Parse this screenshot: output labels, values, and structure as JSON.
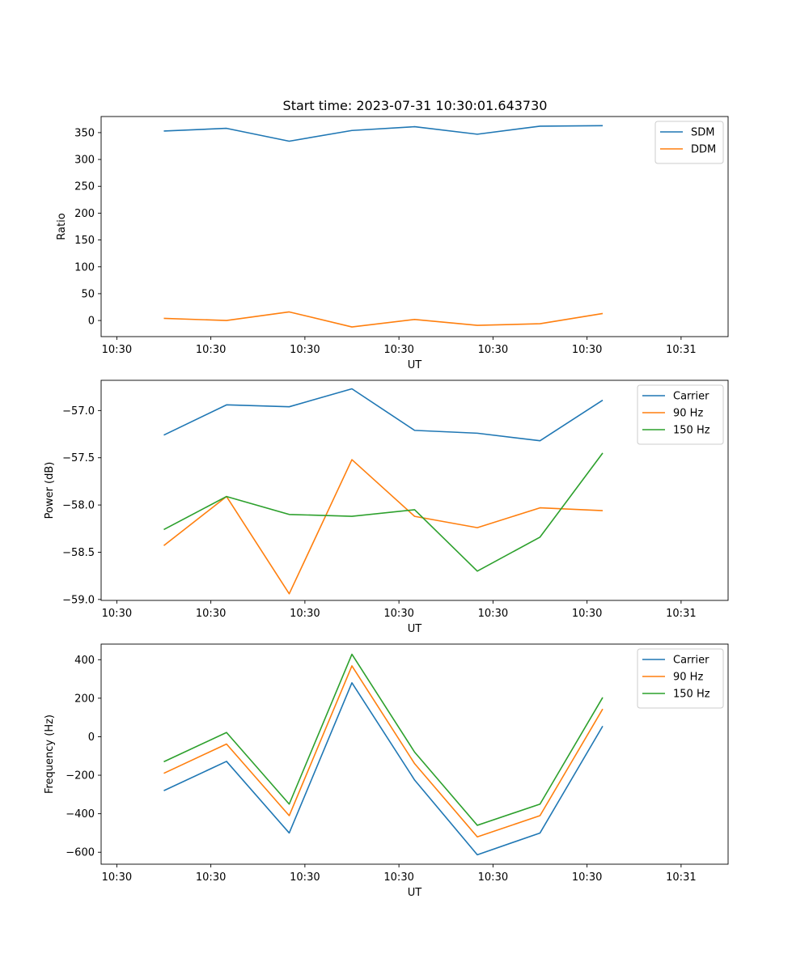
{
  "title": "Start time: 2023-07-31 10:30:01.643730",
  "x_tick_labels": [
    "10:30",
    "10:30",
    "10:30",
    "10:30",
    "10:30",
    "10:30",
    "10:31"
  ],
  "colors": {
    "blue": "#1f77b4",
    "orange": "#ff7f0e",
    "green": "#2ca02c"
  },
  "chart_data": [
    {
      "type": "line",
      "title": "Start time: 2023-07-31 10:30:01.643730",
      "xlabel": "UT",
      "ylabel": "Ratio",
      "x": [
        1,
        2,
        3,
        4,
        5,
        6,
        7,
        8
      ],
      "xlim": [
        0,
        10
      ],
      "ylim": [
        -30,
        380
      ],
      "yticks": [
        0,
        50,
        100,
        150,
        200,
        250,
        300,
        350
      ],
      "ytick_labels": [
        "0",
        "50",
        "100",
        "150",
        "200",
        "250",
        "300",
        "350"
      ],
      "legend_position": "top-right",
      "series": [
        {
          "name": "SDM",
          "color": "#1f77b4",
          "values": [
            353,
            358,
            334,
            354,
            361,
            347,
            362,
            363
          ]
        },
        {
          "name": "DDM",
          "color": "#ff7f0e",
          "values": [
            4,
            0,
            16,
            -12,
            2,
            -9,
            -6,
            13
          ]
        }
      ]
    },
    {
      "type": "line",
      "title": "",
      "xlabel": "UT",
      "ylabel": "Power (dB)",
      "x": [
        1,
        2,
        3,
        4,
        5,
        6,
        7,
        8
      ],
      "xlim": [
        0,
        10
      ],
      "ylim": [
        -59.01,
        -56.68
      ],
      "yticks": [
        -59.0,
        -58.5,
        -58.0,
        -57.5,
        -57.0
      ],
      "ytick_labels": [
        "−59.0",
        "−58.5",
        "−58.0",
        "−57.5",
        "−57.0"
      ],
      "legend_position": "top-right",
      "series": [
        {
          "name": "Carrier",
          "color": "#1f77b4",
          "values": [
            -57.26,
            -56.94,
            -56.96,
            -56.77,
            -57.21,
            -57.24,
            -57.32,
            -56.89
          ]
        },
        {
          "name": "90 Hz",
          "color": "#ff7f0e",
          "values": [
            -58.43,
            -57.91,
            -58.94,
            -57.52,
            -58.12,
            -58.24,
            -58.03,
            -58.06
          ]
        },
        {
          "name": "150 Hz",
          "color": "#2ca02c",
          "values": [
            -58.26,
            -57.91,
            -58.1,
            -58.12,
            -58.05,
            -58.7,
            -58.34,
            -57.45
          ]
        }
      ]
    },
    {
      "type": "line",
      "title": "",
      "xlabel": "UT",
      "ylabel": "Frequency (Hz)",
      "x": [
        1,
        2,
        3,
        4,
        5,
        6,
        7,
        8
      ],
      "xlim": [
        0,
        10
      ],
      "ylim": [
        -662,
        481
      ],
      "yticks": [
        -600,
        -400,
        -200,
        0,
        200,
        400
      ],
      "ytick_labels": [
        "−600",
        "−400",
        "−200",
        "0",
        "200",
        "400"
      ],
      "legend_position": "top-right",
      "series": [
        {
          "name": "Carrier",
          "color": "#1f77b4",
          "values": [
            -280,
            -128,
            -500,
            280,
            -225,
            -613,
            -500,
            55
          ]
        },
        {
          "name": "90 Hz",
          "color": "#ff7f0e",
          "values": [
            -190,
            -38,
            -410,
            368,
            -140,
            -520,
            -410,
            144
          ]
        },
        {
          "name": "150 Hz",
          "color": "#2ca02c",
          "values": [
            -130,
            22,
            -350,
            428,
            -80,
            -460,
            -350,
            204
          ]
        }
      ]
    }
  ]
}
